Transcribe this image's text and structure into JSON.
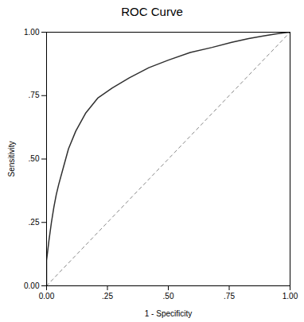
{
  "chart_data": {
    "type": "line",
    "title": "ROC Curve",
    "xlabel": "1 - Specificity",
    "ylabel": "Sensitivity",
    "x": [
      0.0,
      0.0,
      0.01,
      0.02,
      0.03,
      0.04,
      0.05,
      0.07,
      0.09,
      0.12,
      0.16,
      0.21,
      0.27,
      0.34,
      0.42,
      0.5,
      0.59,
      0.68,
      0.76,
      0.83,
      0.89,
      0.94,
      0.97,
      1.0
    ],
    "values": [
      0.0,
      0.1,
      0.18,
      0.25,
      0.31,
      0.36,
      0.4,
      0.47,
      0.54,
      0.61,
      0.68,
      0.74,
      0.78,
      0.82,
      0.86,
      0.89,
      0.92,
      0.94,
      0.96,
      0.975,
      0.985,
      0.993,
      0.997,
      1.0
    ],
    "color": "#303030",
    "reference_line": {
      "x": [
        0,
        1
      ],
      "y": [
        0,
        1
      ],
      "color": "#888888",
      "line_style": "dashed"
    },
    "xlim": [
      0.0,
      1.0
    ],
    "ylim": [
      0.0,
      1.0
    ],
    "xticks": [
      {
        "value": 0.0,
        "label": "0.00"
      },
      {
        "value": 0.25,
        "label": ".25"
      },
      {
        "value": 0.5,
        "label": ".50"
      },
      {
        "value": 0.75,
        "label": ".75"
      },
      {
        "value": 1.0,
        "label": "1.00"
      }
    ],
    "yticks": [
      {
        "value": 0.0,
        "label": "0.00"
      },
      {
        "value": 0.25,
        "label": ".25"
      },
      {
        "value": 0.5,
        "label": ".50"
      },
      {
        "value": 0.75,
        "label": ".75"
      },
      {
        "value": 1.0,
        "label": "1.00"
      }
    ],
    "grid": false
  }
}
